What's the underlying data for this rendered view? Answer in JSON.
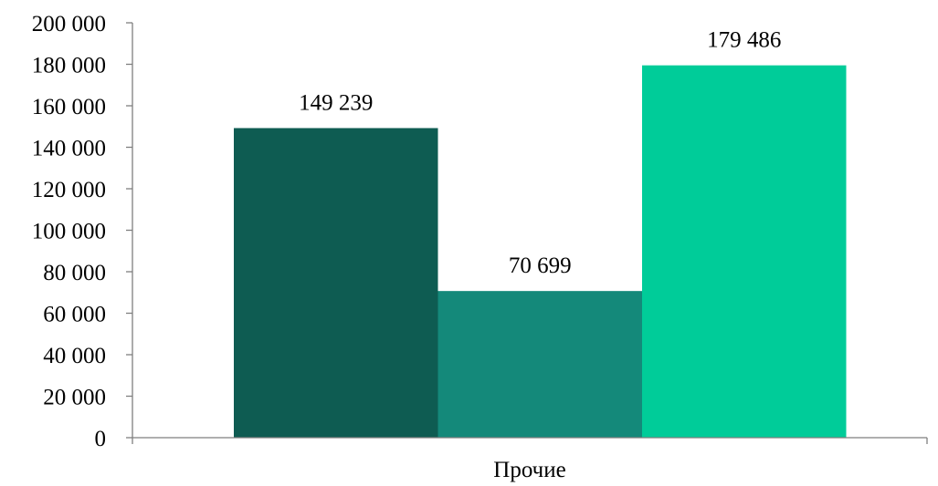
{
  "chart_data": {
    "type": "bar",
    "categories": [
      "Прочие"
    ],
    "series": [
      {
        "values": [
          149239
        ],
        "color": "#0e5c52"
      },
      {
        "values": [
          70699
        ],
        "color": "#14897a"
      },
      {
        "values": [
          179486
        ],
        "color": "#00cc99"
      }
    ],
    "data_labels": [
      "149 239",
      "70 699",
      "179 486"
    ],
    "y_ticks": [
      0,
      20000,
      40000,
      60000,
      80000,
      100000,
      120000,
      140000,
      160000,
      180000,
      200000
    ],
    "y_tick_labels": [
      "0",
      "20 000",
      "40 000",
      "60 000",
      "80 000",
      "100 000",
      "120 000",
      "140 000",
      "160 000",
      "180 000",
      "200 000"
    ],
    "ylim": [
      0,
      200000
    ],
    "title": "",
    "xlabel": "",
    "ylabel": "",
    "grid": false,
    "legend": false,
    "axis_color": "#7f7f7f"
  }
}
